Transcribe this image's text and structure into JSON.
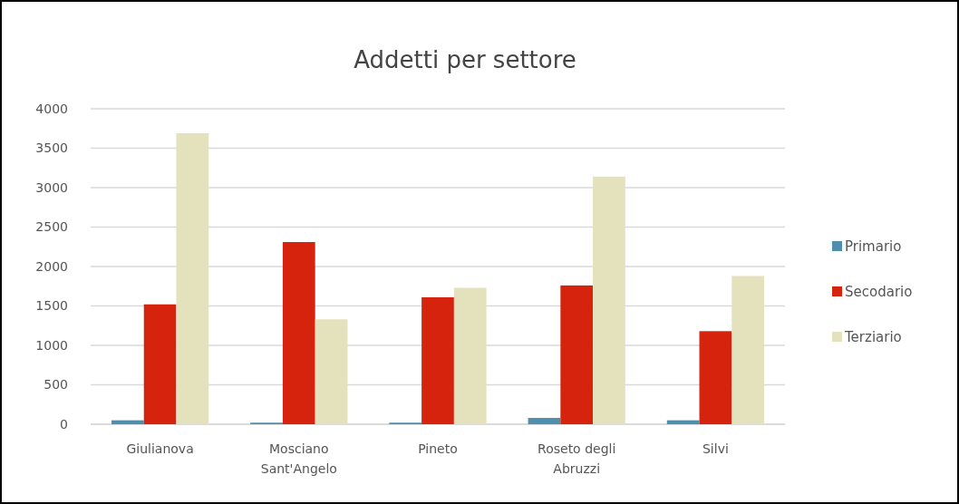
{
  "chart_data": {
    "type": "bar",
    "title": "Addetti per settore",
    "categories": [
      "Giulianova",
      "Mosciano Sant'Angelo",
      "Pineto",
      "Roseto degli Abruzzi",
      "Silvi"
    ],
    "series": [
      {
        "name": "Primario",
        "color": "#4f8fad",
        "values": [
          50,
          20,
          20,
          80,
          50
        ]
      },
      {
        "name": "Secodario",
        "color": "#d5230d",
        "values": [
          1520,
          2310,
          1610,
          1760,
          1180
        ]
      },
      {
        "name": "Terziario",
        "color": "#e4e2bd",
        "values": [
          3690,
          1330,
          1730,
          3140,
          1880
        ]
      }
    ],
    "ylim": [
      0,
      4000
    ],
    "yticks": [
      0,
      500,
      1000,
      1500,
      2000,
      2500,
      3000,
      3500,
      4000
    ],
    "grid": "y",
    "legend": "right"
  }
}
